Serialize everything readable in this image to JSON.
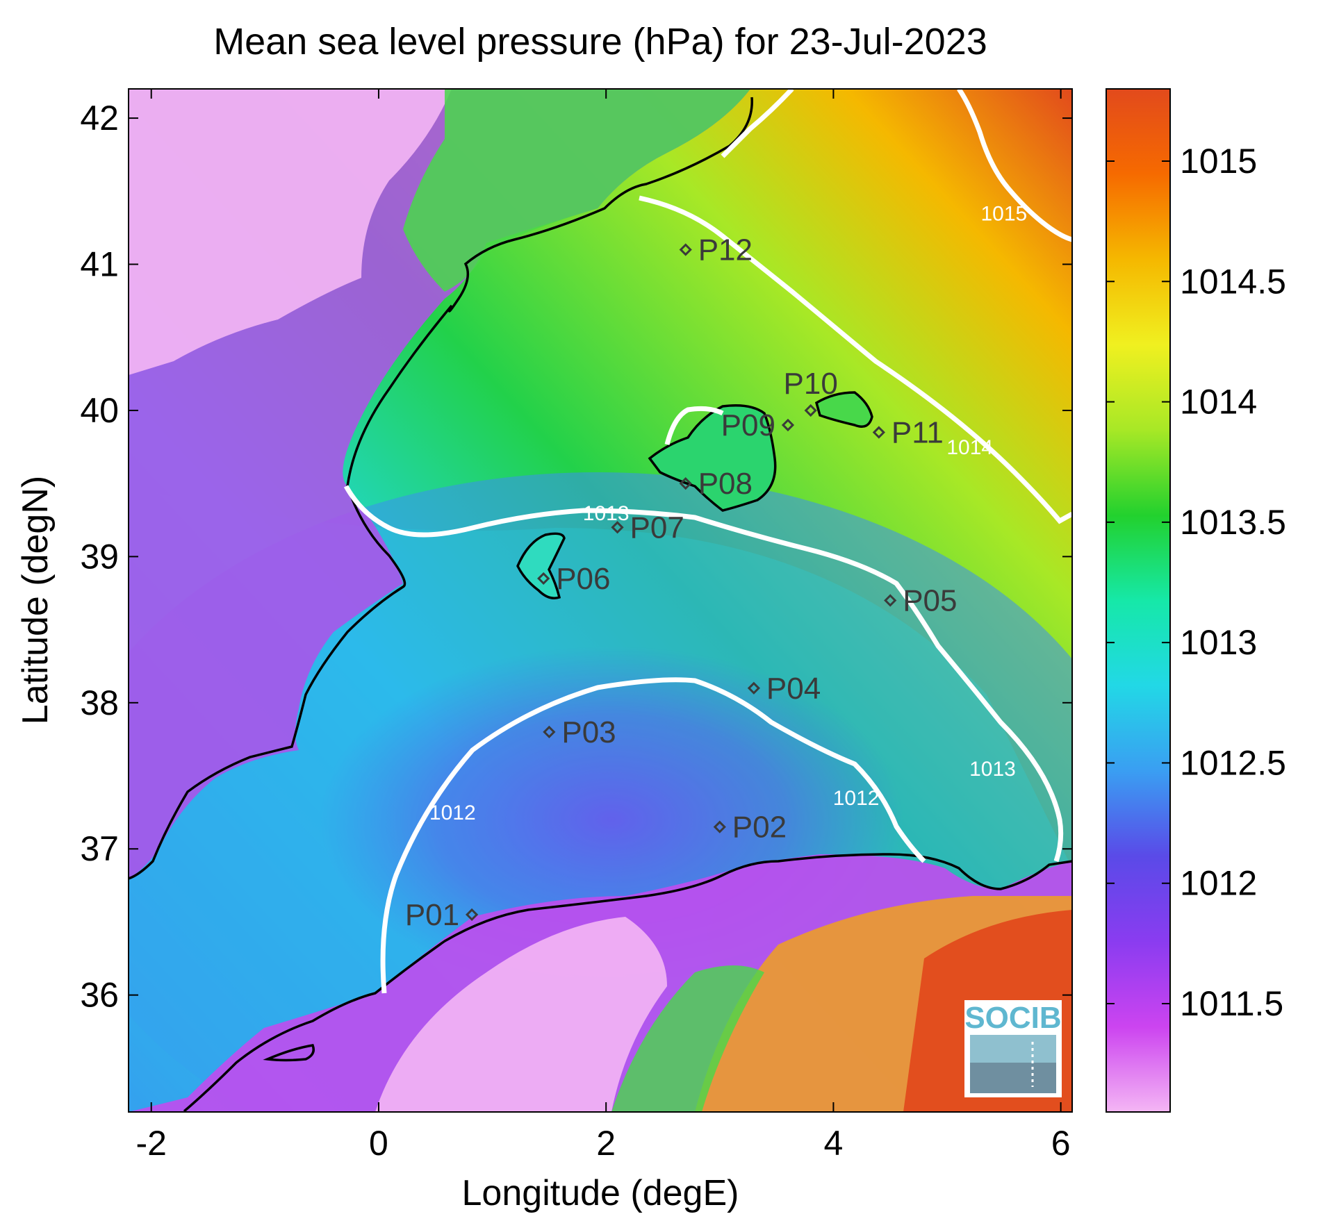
{
  "title": "Mean sea level pressure (hPa) for 23-Jul-2023",
  "xlabel": "Longitude (degE)",
  "ylabel": "Latitude (degN)",
  "x_ticks": [
    {
      "value": -2,
      "label": "-2"
    },
    {
      "value": 0,
      "label": "0"
    },
    {
      "value": 2,
      "label": "2"
    },
    {
      "value": 4,
      "label": "4"
    },
    {
      "value": 6,
      "label": "6"
    }
  ],
  "y_ticks": [
    {
      "value": 36,
      "label": "36"
    },
    {
      "value": 37,
      "label": "37"
    },
    {
      "value": 38,
      "label": "38"
    },
    {
      "value": 39,
      "label": "39"
    },
    {
      "value": 40,
      "label": "40"
    },
    {
      "value": 41,
      "label": "41"
    },
    {
      "value": 42,
      "label": "42"
    }
  ],
  "xlim": [
    -2.2,
    6.1
  ],
  "ylim": [
    35.2,
    42.2
  ],
  "colorbar": {
    "range": [
      1011.05,
      1015.3
    ],
    "ticks": [
      {
        "value": 1011.5,
        "label": "1011.5"
      },
      {
        "value": 1012,
        "label": "1012"
      },
      {
        "value": 1012.5,
        "label": "1012.5"
      },
      {
        "value": 1013,
        "label": "1013"
      },
      {
        "value": 1013.5,
        "label": "1013.5"
      },
      {
        "value": 1014,
        "label": "1014"
      },
      {
        "value": 1014.5,
        "label": "1014.5"
      },
      {
        "value": 1015,
        "label": "1015"
      }
    ],
    "colors": [
      "#f4b6f4",
      "#cc44f0",
      "#8a3cf0",
      "#5a4ae8",
      "#3a9ef2",
      "#22d8e6",
      "#16e8a8",
      "#22d12e",
      "#a8e826",
      "#f0f020",
      "#f5b800",
      "#f66a00",
      "#e24a1c"
    ]
  },
  "contours": [
    {
      "label": "1012",
      "label_positions": [
        [
          0.65,
          37.2
        ],
        [
          4.2,
          37.3
        ]
      ]
    },
    {
      "label": "1013",
      "label_positions": [
        [
          2.0,
          39.25
        ],
        [
          5.4,
          37.5
        ]
      ]
    },
    {
      "label": "1014",
      "label_positions": [
        [
          5.2,
          39.7
        ]
      ]
    },
    {
      "label": "1015",
      "label_positions": [
        [
          5.5,
          41.3
        ]
      ]
    }
  ],
  "stations": [
    {
      "id": "P01",
      "lon": 0.82,
      "lat": 36.55
    },
    {
      "id": "P02",
      "lon": 3.0,
      "lat": 37.15
    },
    {
      "id": "P03",
      "lon": 1.5,
      "lat": 37.8
    },
    {
      "id": "P04",
      "lon": 3.3,
      "lat": 38.1
    },
    {
      "id": "P05",
      "lon": 4.5,
      "lat": 38.7
    },
    {
      "id": "P06",
      "lon": 1.45,
      "lat": 38.85
    },
    {
      "id": "P07",
      "lon": 2.1,
      "lat": 39.2
    },
    {
      "id": "P08",
      "lon": 2.7,
      "lat": 39.5
    },
    {
      "id": "P09",
      "lon": 3.6,
      "lat": 39.9
    },
    {
      "id": "P10",
      "lon": 3.8,
      "lat": 40.0
    },
    {
      "id": "P11",
      "lon": 4.4,
      "lat": 39.85
    },
    {
      "id": "P12",
      "lon": 2.7,
      "lat": 41.1
    }
  ],
  "logo": {
    "text": "SOCIB"
  }
}
